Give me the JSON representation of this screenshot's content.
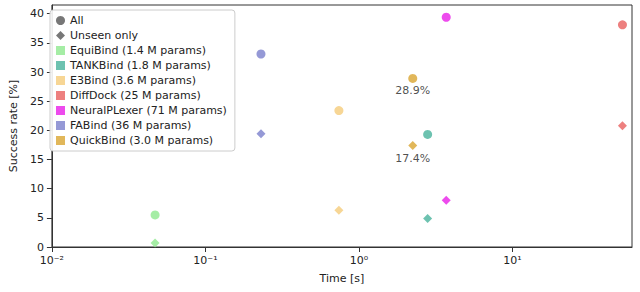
{
  "chart_data": {
    "type": "scatter",
    "x_label": "Time [s]",
    "y_label": "Success rate [%]",
    "log": "x",
    "grid": false,
    "legend": "upper left",
    "xlim": [
      0.01,
      60
    ],
    "xticks": [
      {
        "value": 0.01,
        "label": "10⁻²"
      },
      {
        "value": 0.1,
        "label": "10⁻¹"
      },
      {
        "value": 1,
        "label": "10⁰"
      },
      {
        "value": 10,
        "label": "10¹"
      }
    ],
    "ylim": [
      0,
      41.5
    ],
    "yticks": [
      0,
      5,
      10,
      15,
      20,
      25,
      30,
      35,
      40
    ],
    "point_types": [
      {
        "name": "All",
        "marker": "circle",
        "color": "#555555"
      },
      {
        "name": "Unseen only",
        "marker": "diamond",
        "color": "#555555"
      }
    ],
    "series": [
      {
        "name": "EquiBind (1.4 M params)",
        "color": "#8fe88f",
        "x": [
          0.047,
          0.047
        ],
        "values": [
          5.5,
          0.7
        ]
      },
      {
        "name": "TANKBind (1.8 M params)",
        "color": "#48b39c",
        "x": [
          2.8,
          2.8
        ],
        "values": [
          19.3,
          4.9
        ]
      },
      {
        "name": "E3Bind (3.6 M params)",
        "color": "#f5cc7a",
        "x": [
          0.74,
          0.74
        ],
        "values": [
          23.4,
          6.3
        ]
      },
      {
        "name": "DiffDock (25 M params)",
        "color": "#e8605f",
        "x": [
          52,
          52
        ],
        "values": [
          38.1,
          20.8
        ]
      },
      {
        "name": "NeuralPLexer (71 M params)",
        "color": "#e81ee8",
        "x": [
          3.7,
          3.7
        ],
        "values": [
          39.4,
          8.0
        ]
      },
      {
        "name": "FABind (36 M params)",
        "color": "#7b7fcc",
        "x": [
          0.23,
          0.23
        ],
        "values": [
          33.1,
          19.4
        ]
      },
      {
        "name": "QuickBind (3.0 M params)",
        "color": "#d9a531",
        "x": [
          2.24,
          2.24
        ],
        "values": [
          28.9,
          17.4
        ]
      }
    ],
    "annotations": [
      {
        "text": "28.9%",
        "x": 2.24,
        "y": 28.9
      },
      {
        "text": "17.4%",
        "x": 2.24,
        "y": 17.4
      }
    ]
  }
}
